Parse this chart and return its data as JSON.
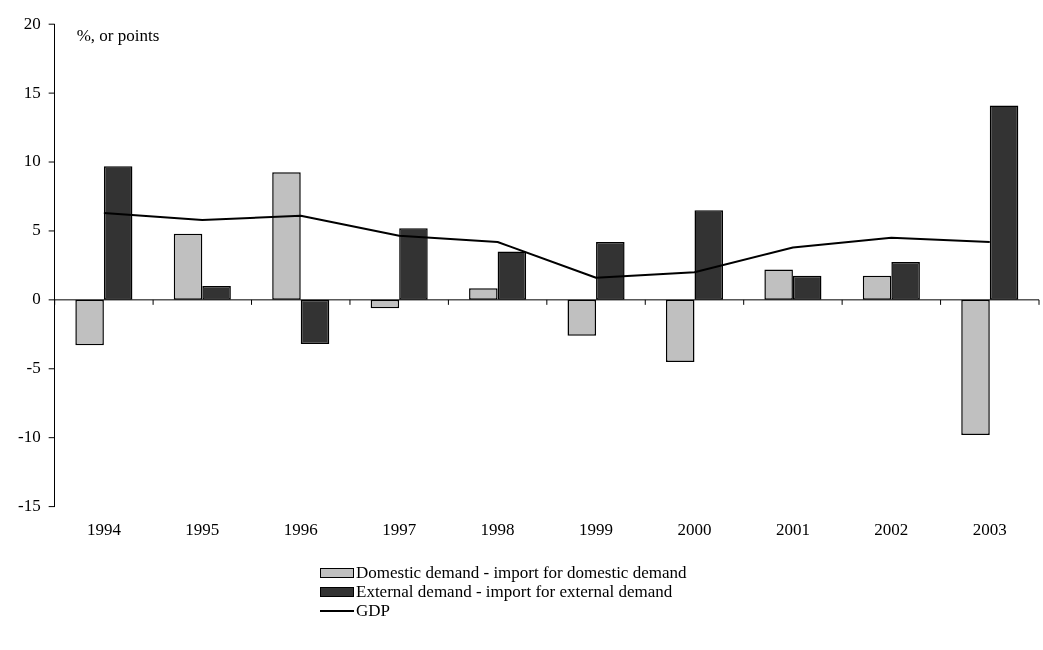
{
  "chart_data": {
    "type": "bar",
    "ylabel": "%, or points",
    "categories": [
      "1994",
      "1995",
      "1996",
      "1997",
      "1998",
      "1999",
      "2000",
      "2001",
      "2002",
      "2003"
    ],
    "series": [
      {
        "name": "Domestic demand - import for domestic demand",
        "color": "#c0c0c0",
        "values": [
          -3.3,
          4.8,
          9.25,
          -0.6,
          0.85,
          -2.6,
          -4.5,
          2.2,
          1.75,
          -9.8
        ]
      },
      {
        "name": "External demand - import for external demand",
        "color": "#333333",
        "values": [
          9.7,
          1.0,
          -3.2,
          5.2,
          3.5,
          4.2,
          6.5,
          1.75,
          2.75,
          14.1
        ]
      },
      {
        "name": "GDP",
        "type": "line",
        "color": "#000000",
        "values": [
          6.3,
          5.8,
          6.1,
          4.65,
          4.2,
          1.6,
          2.0,
          3.8,
          4.5,
          4.2
        ]
      }
    ],
    "ylim": [
      -15,
      20
    ],
    "yticks": [
      -15,
      -10,
      -5,
      0,
      5,
      10,
      15,
      20
    ],
    "legend": "bottom",
    "marker": "none"
  }
}
